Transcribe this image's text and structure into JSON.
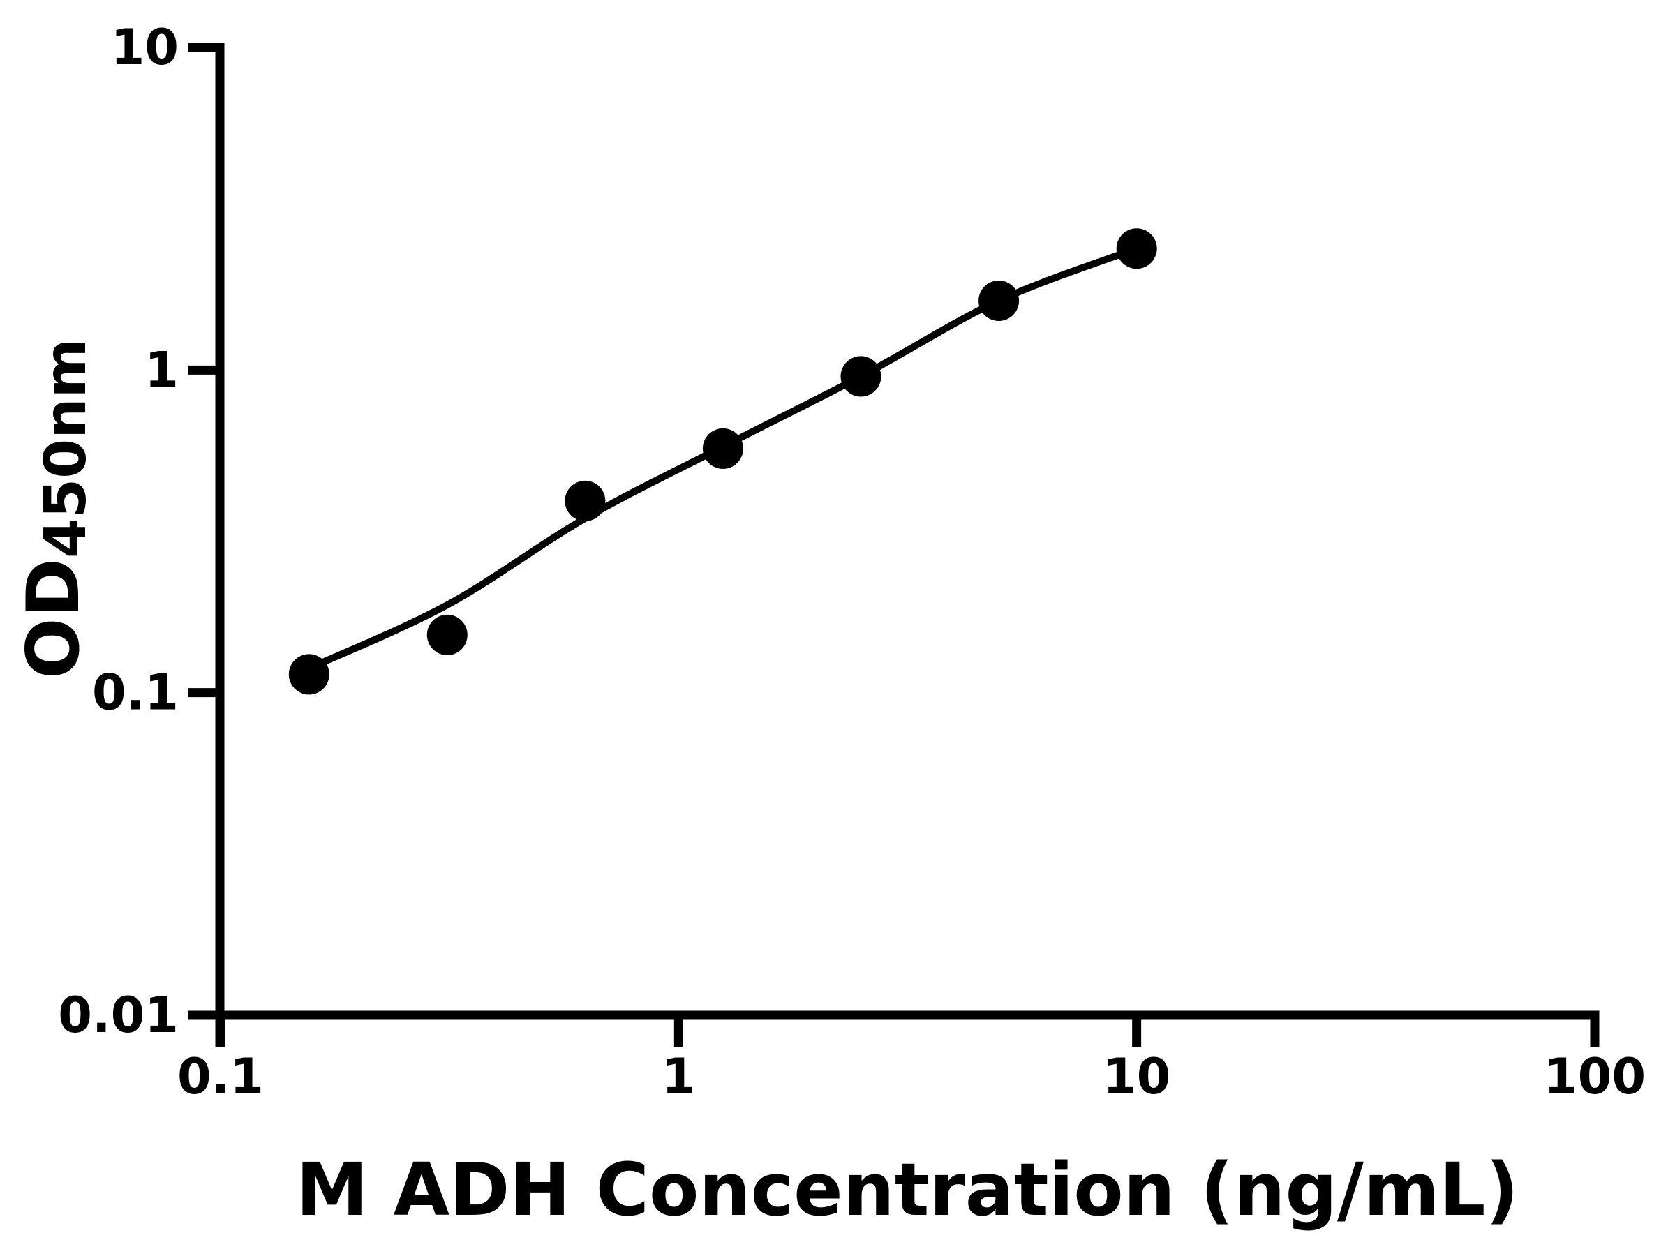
{
  "figure": {
    "background_color": "#ffffff",
    "foreground_color": "#000000"
  },
  "chart_data": {
    "type": "scatter",
    "title": "",
    "xlabel": "M ADH Concentration (ng/mL)",
    "ylabel": "OD450nm",
    "ylabel_parts": {
      "main": "OD",
      "sub": "450nm"
    },
    "x_scale": "log10",
    "y_scale": "log10",
    "xlim": [
      0.1,
      100
    ],
    "ylim": [
      0.01,
      10
    ],
    "x_ticks": [
      0.1,
      1,
      10,
      100
    ],
    "x_tick_labels": [
      "0.1",
      "1",
      "10",
      "100"
    ],
    "y_ticks": [
      10,
      1,
      0.1,
      0.01
    ],
    "y_tick_labels": [
      "10",
      "1",
      "0.1",
      "0.01"
    ],
    "grid": false,
    "legend": false,
    "marker_color": "#000000",
    "line_color": "#000000",
    "series": [
      {
        "name": "standard-points",
        "x": [
          0.156,
          0.3125,
          0.625,
          1.25,
          2.5,
          5,
          10
        ],
        "y": [
          0.114,
          0.151,
          0.393,
          0.571,
          0.956,
          1.64,
          2.38
        ]
      }
    ],
    "fit_curve": {
      "name": "four-parameter-logistic-fit",
      "x": [
        0.156,
        0.3125,
        0.625,
        1.25,
        2.5,
        5,
        10
      ],
      "y": [
        0.119,
        0.187,
        0.347,
        0.579,
        0.956,
        1.64,
        2.38
      ]
    }
  }
}
